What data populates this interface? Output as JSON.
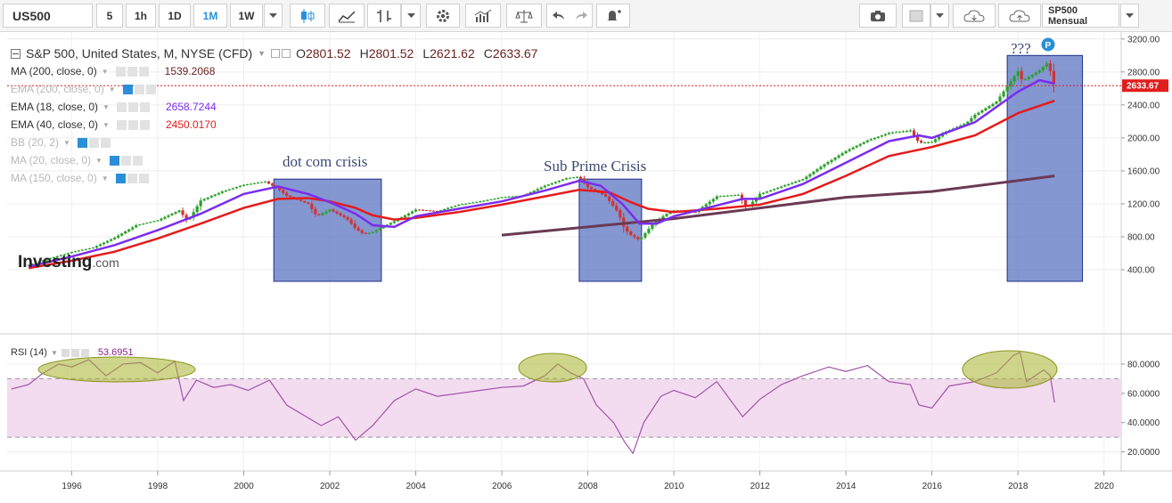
{
  "toolbar": {
    "symbol": "US500",
    "intervals": [
      "5",
      "1h",
      "1D",
      "1M",
      "1W"
    ],
    "active_interval": "1M",
    "saved_layout": "SP500 Mensual"
  },
  "header": {
    "title": "S&P 500, United States, M, NYSE (CFD)",
    "o_label": "O",
    "o": "2801.52",
    "h_label": "H",
    "h": "2801.52",
    "l_label": "L",
    "l": "2621.62",
    "c_label": "C",
    "c": "2633.67"
  },
  "indicators": [
    {
      "label": "MA (200, close, 0)",
      "value": "1539.2068",
      "color": "#6b1f1f",
      "muted": false
    },
    {
      "label": "EMA (200, close, 0)",
      "value": "",
      "color": "#b0b0b0",
      "muted": true
    },
    {
      "label": "EMA (18, close, 0)",
      "value": "2658.7244",
      "color": "#7b2cf0",
      "muted": false
    },
    {
      "label": "EMA (40, close, 0)",
      "value": "2450.0170",
      "color": "#e51b1b",
      "muted": false
    },
    {
      "label": "BB (20, 2)",
      "value": "",
      "color": "#b0b0b0",
      "muted": true
    },
    {
      "label": "MA (20, close, 0)",
      "value": "",
      "color": "#b0b0b0",
      "muted": true
    },
    {
      "label": "MA (150, close, 0)",
      "value": "",
      "color": "#b0b0b0",
      "muted": true
    }
  ],
  "watermark": {
    "brand": "Investing",
    "suffix": ".com"
  },
  "annotations": {
    "dotcom": "dot com crisis",
    "subprime": "Sub Prime Crisis",
    "question": "???",
    "badge": "P"
  },
  "price_axis": {
    "ticks": [
      "3200.00",
      "2800.00",
      "2400.00",
      "2000.00",
      "1600.00",
      "1200.00",
      "800.00",
      "400.00"
    ],
    "last": "2633.67"
  },
  "rsi": {
    "label": "RSI (14)",
    "value": "53.6951",
    "ticks": [
      "80.0000",
      "60.0000",
      "40.0000",
      "20.0000"
    ]
  },
  "time_axis": {
    "ticks": [
      "1996",
      "1998",
      "2000",
      "2002",
      "2004",
      "2006",
      "2008",
      "2010",
      "2012",
      "2014",
      "2016",
      "2018",
      "2020"
    ]
  },
  "colors": {
    "up": "#2ea02e",
    "down": "#d23232",
    "ema18": "#7b2cf0",
    "ema40": "#e51b1b",
    "ma200": "#6b3a55",
    "box": "#5b74c2",
    "rsi": "#a152a8",
    "rsi_band": "#f3dcf0",
    "oval": "#a8b42e",
    "last_price": "#e01e1e",
    "accent": "#2a8fd8"
  },
  "chart_data": {
    "type": "candlestick",
    "title": "S&P 500, United States, M, NYSE (CFD)",
    "x_range": [
      1994.5,
      2020.4
    ],
    "y_range": [
      260,
      3230
    ],
    "price_close": [
      [
        1995.0,
        460
      ],
      [
        1995.5,
        540
      ],
      [
        1996.0,
        615
      ],
      [
        1996.5,
        670
      ],
      [
        1997.0,
        790
      ],
      [
        1997.5,
        940
      ],
      [
        1998.0,
        1000
      ],
      [
        1998.5,
        1120
      ],
      [
        1998.7,
        990
      ],
      [
        1999.0,
        1240
      ],
      [
        1999.5,
        1350
      ],
      [
        2000.0,
        1430
      ],
      [
        2000.5,
        1470
      ],
      [
        2000.8,
        1380
      ],
      [
        2001.0,
        1300
      ],
      [
        2001.5,
        1200
      ],
      [
        2001.7,
        1050
      ],
      [
        2002.0,
        1130
      ],
      [
        2002.4,
        1020
      ],
      [
        2002.6,
        900
      ],
      [
        2002.8,
        830
      ],
      [
        2003.0,
        860
      ],
      [
        2003.5,
        990
      ],
      [
        2004.0,
        1130
      ],
      [
        2004.5,
        1110
      ],
      [
        2005.0,
        1190
      ],
      [
        2005.5,
        1230
      ],
      [
        2006.0,
        1280
      ],
      [
        2006.5,
        1300
      ],
      [
        2007.0,
        1420
      ],
      [
        2007.5,
        1510
      ],
      [
        2007.8,
        1530
      ],
      [
        2008.0,
        1400
      ],
      [
        2008.4,
        1300
      ],
      [
        2008.7,
        1100
      ],
      [
        2008.85,
        900
      ],
      [
        2009.0,
        820
      ],
      [
        2009.2,
        760
      ],
      [
        2009.5,
        950
      ],
      [
        2009.8,
        1070
      ],
      [
        2010.0,
        1120
      ],
      [
        2010.5,
        1100
      ],
      [
        2011.0,
        1290
      ],
      [
        2011.5,
        1310
      ],
      [
        2011.7,
        1150
      ],
      [
        2012.0,
        1320
      ],
      [
        2012.5,
        1410
      ],
      [
        2013.0,
        1500
      ],
      [
        2013.5,
        1680
      ],
      [
        2014.0,
        1840
      ],
      [
        2014.5,
        1970
      ],
      [
        2015.0,
        2060
      ],
      [
        2015.5,
        2090
      ],
      [
        2015.7,
        1940
      ],
      [
        2016.0,
        1950
      ],
      [
        2016.3,
        2070
      ],
      [
        2016.8,
        2180
      ],
      [
        2017.0,
        2280
      ],
      [
        2017.5,
        2440
      ],
      [
        2018.0,
        2810
      ],
      [
        2018.1,
        2690
      ],
      [
        2018.5,
        2820
      ],
      [
        2018.7,
        2920
      ],
      [
        2018.8,
        2700
      ],
      [
        2018.85,
        2633.67
      ]
    ],
    "ema18": [
      [
        1995.0,
        440
      ],
      [
        1996.0,
        560
      ],
      [
        1997.0,
        700
      ],
      [
        1998.0,
        880
      ],
      [
        1999.0,
        1080
      ],
      [
        2000.0,
        1320
      ],
      [
        2000.8,
        1410
      ],
      [
        2001.5,
        1320
      ],
      [
        2002.0,
        1220
      ],
      [
        2002.6,
        1080
      ],
      [
        2003.0,
        940
      ],
      [
        2003.5,
        920
      ],
      [
        2004.0,
        1050
      ],
      [
        2005.0,
        1140
      ],
      [
        2006.0,
        1230
      ],
      [
        2007.0,
        1360
      ],
      [
        2007.8,
        1480
      ],
      [
        2008.3,
        1420
      ],
      [
        2008.8,
        1200
      ],
      [
        2009.2,
        960
      ],
      [
        2009.6,
        960
      ],
      [
        2010.0,
        1050
      ],
      [
        2011.0,
        1180
      ],
      [
        2011.6,
        1260
      ],
      [
        2012.0,
        1260
      ],
      [
        2013.0,
        1440
      ],
      [
        2014.0,
        1700
      ],
      [
        2015.0,
        1960
      ],
      [
        2015.7,
        2030
      ],
      [
        2016.0,
        2000
      ],
      [
        2017.0,
        2190
      ],
      [
        2018.0,
        2560
      ],
      [
        2018.5,
        2700
      ],
      [
        2018.85,
        2658.72
      ]
    ],
    "ema40": [
      [
        1995.0,
        420
      ],
      [
        1996.0,
        510
      ],
      [
        1997.0,
        620
      ],
      [
        1998.0,
        780
      ],
      [
        1999.0,
        960
      ],
      [
        2000.0,
        1150
      ],
      [
        2000.8,
        1260
      ],
      [
        2001.5,
        1270
      ],
      [
        2002.0,
        1230
      ],
      [
        2002.6,
        1150
      ],
      [
        2003.0,
        1060
      ],
      [
        2003.5,
        1010
      ],
      [
        2004.0,
        1030
      ],
      [
        2005.0,
        1100
      ],
      [
        2006.0,
        1190
      ],
      [
        2007.0,
        1290
      ],
      [
        2007.8,
        1370
      ],
      [
        2008.5,
        1340
      ],
      [
        2009.0,
        1220
      ],
      [
        2009.4,
        1140
      ],
      [
        2010.0,
        1100
      ],
      [
        2011.0,
        1140
      ],
      [
        2012.0,
        1190
      ],
      [
        2013.0,
        1320
      ],
      [
        2014.0,
        1540
      ],
      [
        2015.0,
        1780
      ],
      [
        2016.0,
        1890
      ],
      [
        2017.0,
        2030
      ],
      [
        2018.0,
        2300
      ],
      [
        2018.85,
        2450.02
      ]
    ],
    "ma200": [
      [
        2006.0,
        820
      ],
      [
        2010.0,
        1020
      ],
      [
        2014.0,
        1280
      ],
      [
        2016.0,
        1350
      ],
      [
        2018.85,
        1539.21
      ]
    ],
    "rsi": {
      "label": "RSI (14)",
      "y_range": [
        10,
        97
      ],
      "band": [
        30,
        70
      ],
      "points": [
        [
          1994.6,
          63
        ],
        [
          1995.0,
          66
        ],
        [
          1995.3,
          73
        ],
        [
          1995.7,
          80
        ],
        [
          1996.0,
          78
        ],
        [
          1996.4,
          83
        ],
        [
          1996.8,
          72
        ],
        [
          1997.2,
          80
        ],
        [
          1997.6,
          81
        ],
        [
          1998.0,
          74
        ],
        [
          1998.4,
          82
        ],
        [
          1998.6,
          55
        ],
        [
          1998.9,
          69
        ],
        [
          1999.3,
          64
        ],
        [
          1999.7,
          66
        ],
        [
          2000.1,
          62
        ],
        [
          2000.6,
          69
        ],
        [
          2001.0,
          52
        ],
        [
          2001.4,
          45
        ],
        [
          2001.8,
          38
        ],
        [
          2002.2,
          44
        ],
        [
          2002.6,
          28
        ],
        [
          2003.0,
          38
        ],
        [
          2003.5,
          55
        ],
        [
          2004.0,
          63
        ],
        [
          2004.5,
          58
        ],
        [
          2005.0,
          60
        ],
        [
          2005.5,
          62
        ],
        [
          2006.0,
          64
        ],
        [
          2006.5,
          65
        ],
        [
          2007.0,
          72
        ],
        [
          2007.3,
          80
        ],
        [
          2007.6,
          74
        ],
        [
          2007.9,
          70
        ],
        [
          2008.2,
          52
        ],
        [
          2008.6,
          40
        ],
        [
          2008.85,
          27
        ],
        [
          2009.05,
          19
        ],
        [
          2009.3,
          40
        ],
        [
          2009.7,
          58
        ],
        [
          2010.0,
          62
        ],
        [
          2010.5,
          57
        ],
        [
          2011.0,
          68
        ],
        [
          2011.6,
          44
        ],
        [
          2012.0,
          56
        ],
        [
          2012.5,
          66
        ],
        [
          2013.0,
          72
        ],
        [
          2013.6,
          78
        ],
        [
          2014.0,
          75
        ],
        [
          2014.5,
          79
        ],
        [
          2015.0,
          68
        ],
        [
          2015.5,
          66
        ],
        [
          2015.7,
          52
        ],
        [
          2016.0,
          50
        ],
        [
          2016.4,
          65
        ],
        [
          2017.0,
          68
        ],
        [
          2017.5,
          74
        ],
        [
          2017.9,
          86
        ],
        [
          2018.05,
          88
        ],
        [
          2018.2,
          68
        ],
        [
          2018.6,
          76
        ],
        [
          2018.75,
          72
        ],
        [
          2018.85,
          53.7
        ]
      ]
    },
    "highlight_regions": [
      {
        "label": "dot com crisis",
        "x": [
          2000.7,
          2003.2
        ]
      },
      {
        "label": "Sub Prime Crisis",
        "x": [
          2007.8,
          2009.25
        ]
      },
      {
        "label": "???",
        "x": [
          2017.75,
          2019.5
        ]
      }
    ]
  }
}
